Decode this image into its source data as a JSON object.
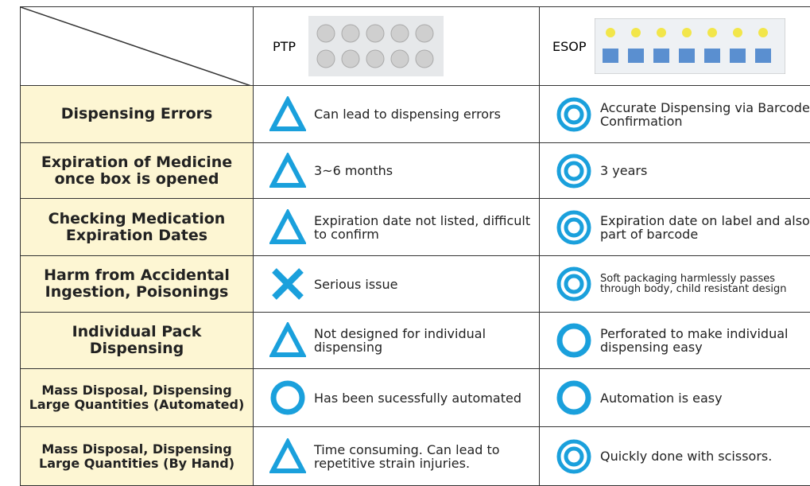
{
  "header": {
    "columns": [
      "PTP",
      "ESOP"
    ]
  },
  "rows": [
    [
      "Dispensing Errors",
      "Can lead to dispensing errors",
      "Accurate Dispensing via Barcode Confirmation"
    ],
    [
      "Expiration of Medicine once box is opened",
      "3~6 months",
      "3 years"
    ],
    [
      "Checking Medication Expiration Dates",
      "Expiration date not listed, difficult to confirm",
      "Expiration date on label and also part of barcode"
    ],
    [
      "Harm from Accidental Ingestion, Poisonings",
      "Serious issue",
      "Soft packaging harmlessly passes through body, child resistant design"
    ],
    [
      "Individual Pack Dispensing",
      "Not designed for individual dispensing",
      "Perforated to make individual dispensing easy"
    ],
    [
      "Mass Disposal, Dispensing Large Quantities (Automated)",
      "Has been sucessfully automated",
      "Automation is easy"
    ],
    [
      "Mass Disposal, Dispensing Large Quantities (By Hand)",
      "Time consuming. Can lead to repetitive strain injuries.",
      "Quickly done with scissors."
    ]
  ]
}
